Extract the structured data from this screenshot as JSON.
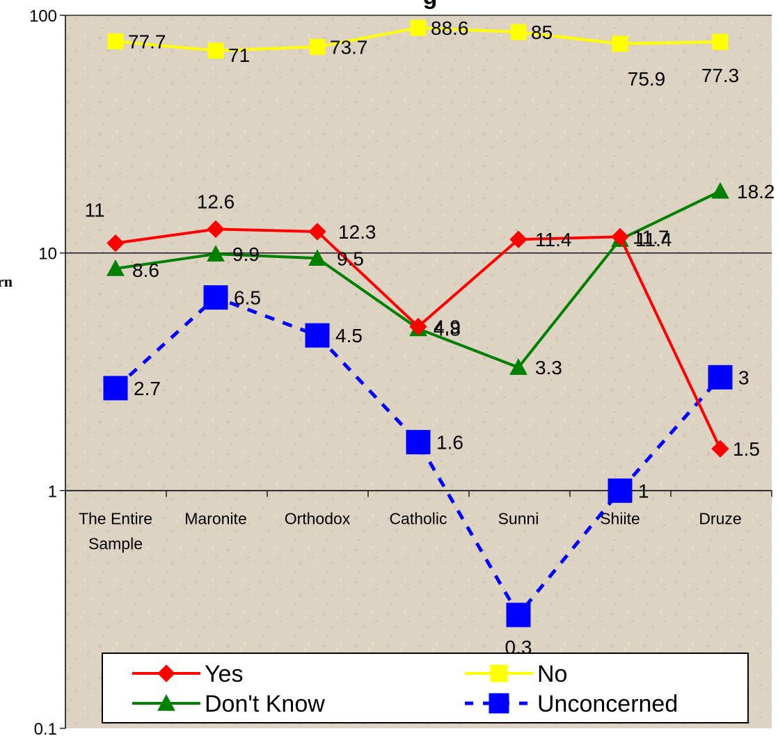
{
  "chart_data": {
    "type": "line",
    "title": "g",
    "ylabel": "rn",
    "yscale": "log",
    "ylim": [
      0.1,
      100
    ],
    "yticks": [
      "0.1",
      "1",
      "10",
      "100"
    ],
    "categories": [
      [
        "The Entire",
        "Sample"
      ],
      [
        "Maronite"
      ],
      [
        "Orthodox"
      ],
      [
        "Catholic"
      ],
      [
        "Sunni"
      ],
      [
        "Shiite"
      ],
      [
        "Druze"
      ]
    ],
    "series": [
      {
        "name": "Yes",
        "color": "#ff0000",
        "marker": "diamond",
        "dash": false,
        "values": [
          11,
          12.6,
          12.3,
          4.9,
          11.4,
          11.7,
          1.5
        ],
        "labels": [
          "11",
          "12.6",
          "12.3",
          "4.9",
          "11.4",
          "11.7",
          "1.5"
        ]
      },
      {
        "name": "No",
        "color": "#ffff00",
        "marker": "square",
        "dash": false,
        "values": [
          77.7,
          71,
          73.7,
          88.6,
          85,
          75.9,
          77.3
        ],
        "labels": [
          "77.7",
          "71",
          "73.7",
          "88.6",
          "85",
          "75.9",
          "77.3"
        ]
      },
      {
        "name": "Don't Know",
        "color": "#008000",
        "marker": "triangle",
        "dash": false,
        "values": [
          8.6,
          9.9,
          9.5,
          4.8,
          3.3,
          11.4,
          18.2
        ],
        "labels": [
          "8.6",
          "9.9",
          "9.5",
          "4.8",
          "3.3",
          "11.4",
          "18.2"
        ]
      },
      {
        "name": "Unconcerned",
        "color": "#0000ff",
        "marker": "square",
        "dash": true,
        "values": [
          2.7,
          6.5,
          4.5,
          1.6,
          0.3,
          1,
          3
        ],
        "labels": [
          "2.7",
          "6.5",
          "4.5",
          "1.6",
          "0.3",
          "1",
          "3"
        ]
      }
    ],
    "legend_position": "bottom"
  }
}
